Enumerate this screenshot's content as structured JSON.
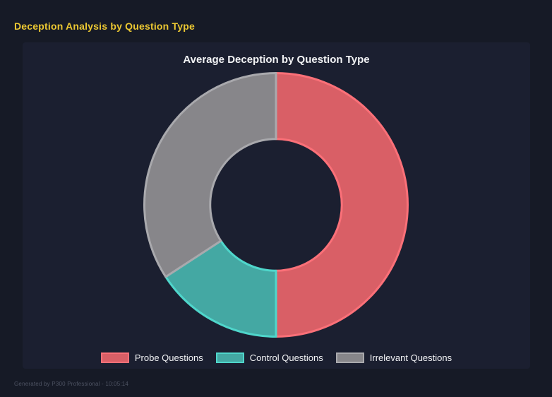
{
  "header": {
    "title": "Deception Analysis by Question Type"
  },
  "chart_data": {
    "type": "pie",
    "style": "doughnut",
    "title": "Average Deception by Question Type",
    "categories": [
      "Probe Questions",
      "Control Questions",
      "Irrelevant Questions"
    ],
    "values": [
      50,
      15.8,
      34.2
    ],
    "values_unit": "percent-of-ring-estimated",
    "colors": [
      "#d95f66",
      "#44a8a3",
      "#87868a"
    ],
    "border_colors": [
      "#fb7078",
      "#4fd6cb",
      "#a9a9ad"
    ],
    "border_width": 3,
    "cutout_ratio": 0.5,
    "start_angle_deg": 0,
    "direction": "clockwise",
    "legend_position": "bottom"
  },
  "footer": {
    "text": "Generated by P300 Professional - 10:05:14"
  },
  "theme": {
    "page_bg": "#161a26",
    "panel_bg": "#1b1f30",
    "accent_yellow": "#ecc832",
    "text_light": "#f2f3f5",
    "text_dim": "#4e5363"
  }
}
